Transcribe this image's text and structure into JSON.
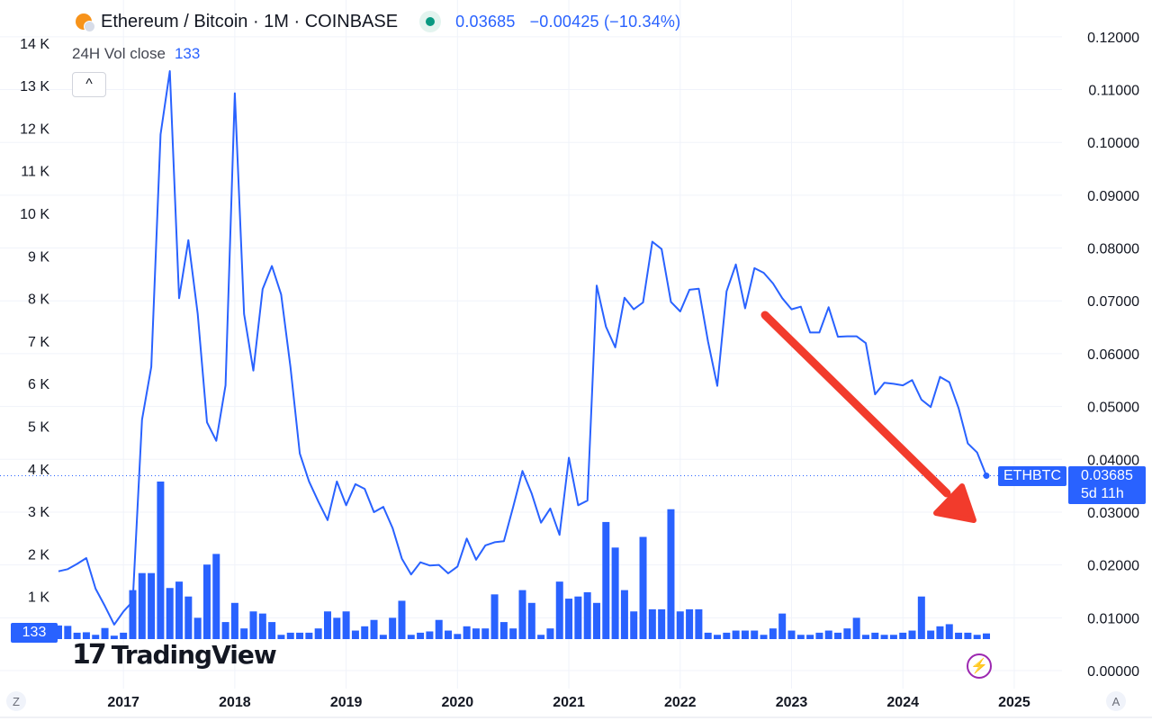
{
  "header": {
    "title": "Ethereum / Bitcoin · 1M · COINBASE",
    "last_price": "0.03685",
    "change": "−0.00425 (−10.34%)"
  },
  "volume_legend": {
    "label": "24H Vol close",
    "value": "133"
  },
  "collapse_glyph": "^",
  "price_tag": {
    "symbol": "ETHBTC",
    "price": "0.03685",
    "countdown": "5d 11h"
  },
  "volume_tag": "133",
  "branding": {
    "logo_mark": "17",
    "logo_text": "TradingView"
  },
  "bolt_glyph": "⚡",
  "corner_left": "Z",
  "corner_right": "A",
  "colors": {
    "line": "#2962ff",
    "volume": "#2962ff",
    "arrow": "#f23b2c",
    "grid": "#f0f3fa",
    "axis_text": "#131722"
  },
  "chart_data": [
    {
      "type": "line",
      "title": "Ethereum / Bitcoin · 1M · COINBASE",
      "series": [],
      "grid": true,
      "y_axis_side": "right",
      "ylim": [
        0,
        0.122
      ],
      "yticks": [
        "0.12000",
        "0.11000",
        "0.10000",
        "0.09000",
        "0.08000",
        "0.07000",
        "0.06000",
        "0.05000",
        "0.04000",
        "0.03000",
        "0.02000",
        "0.01000",
        "0.00000"
      ],
      "xticks": [
        "2017",
        "2018",
        "2019",
        "2020",
        "2021",
        "2022",
        "2023",
        "2024",
        "2025"
      ],
      "x": [
        "2016-06",
        "2016-07",
        "2016-08",
        "2016-09",
        "2016-10",
        "2016-11",
        "2016-12",
        "2017-01",
        "2017-02",
        "2017-03",
        "2017-04",
        "2017-05",
        "2017-06",
        "2017-07",
        "2017-08",
        "2017-09",
        "2017-10",
        "2017-11",
        "2017-12",
        "2018-01",
        "2018-02",
        "2018-03",
        "2018-04",
        "2018-05",
        "2018-06",
        "2018-07",
        "2018-08",
        "2018-09",
        "2018-10",
        "2018-11",
        "2018-12",
        "2019-01",
        "2019-02",
        "2019-03",
        "2019-04",
        "2019-05",
        "2019-06",
        "2019-07",
        "2019-08",
        "2019-09",
        "2019-10",
        "2019-11",
        "2019-12",
        "2020-01",
        "2020-02",
        "2020-03",
        "2020-04",
        "2020-05",
        "2020-06",
        "2020-07",
        "2020-08",
        "2020-09",
        "2020-10",
        "2020-11",
        "2020-12",
        "2021-01",
        "2021-02",
        "2021-03",
        "2021-04",
        "2021-05",
        "2021-06",
        "2021-07",
        "2021-08",
        "2021-09",
        "2021-10",
        "2021-11",
        "2021-12",
        "2022-01",
        "2022-02",
        "2022-03",
        "2022-04",
        "2022-05",
        "2022-06",
        "2022-07",
        "2022-08",
        "2022-09",
        "2022-10",
        "2022-11",
        "2022-12",
        "2023-01",
        "2023-02",
        "2023-03",
        "2023-04",
        "2023-05",
        "2023-06",
        "2023-07",
        "2023-08",
        "2023-09",
        "2023-10",
        "2023-11",
        "2023-12",
        "2024-01",
        "2024-02",
        "2024-03",
        "2024-04",
        "2024-05",
        "2024-06",
        "2024-07",
        "2024-08",
        "2024-09",
        "2024-10"
      ],
      "values": [
        0.0188,
        0.0192,
        0.0202,
        0.0213,
        0.0155,
        0.0122,
        0.0087,
        0.0112,
        0.0131,
        0.0475,
        0.0575,
        0.1015,
        0.1135,
        0.0705,
        0.0815,
        0.0675,
        0.047,
        0.0435,
        0.054,
        0.1093,
        0.0675,
        0.0568,
        0.0722,
        0.0766,
        0.0712,
        0.0574,
        0.0411,
        0.0358,
        0.032,
        0.0285,
        0.0358,
        0.0313,
        0.0353,
        0.0344,
        0.03,
        0.031,
        0.027,
        0.0212,
        0.0182,
        0.0205,
        0.0199,
        0.02,
        0.0184,
        0.0197,
        0.025,
        0.021,
        0.0237,
        0.0243,
        0.0245,
        0.031,
        0.0378,
        0.0335,
        0.028,
        0.0307,
        0.0257,
        0.0403,
        0.0313,
        0.0322,
        0.0729,
        0.0651,
        0.0612,
        0.0706,
        0.0684,
        0.0697,
        0.0812,
        0.0798,
        0.0698,
        0.068,
        0.0721,
        0.0723,
        0.0623,
        0.0539,
        0.0718,
        0.0769,
        0.0686,
        0.0762,
        0.0753,
        0.0733,
        0.0705,
        0.0684,
        0.0689,
        0.064,
        0.064,
        0.0688,
        0.0632,
        0.0633,
        0.0633,
        0.062,
        0.0523,
        0.0545,
        0.0543,
        0.054,
        0.055,
        0.0513,
        0.0499,
        0.0556,
        0.0546,
        0.0497,
        0.043,
        0.0413,
        0.0369
      ]
    },
    {
      "type": "bar",
      "title": "24H Vol close",
      "series": [],
      "ylim": [
        0,
        14000
      ],
      "yticks": [
        "14 K",
        "13 K",
        "12 K",
        "11 K",
        "10 K",
        "9 K",
        "8 K",
        "7 K",
        "6 K",
        "5 K",
        "4 K",
        "3 K",
        "2 K",
        "1 K"
      ],
      "values": [
        320,
        310,
        150,
        160,
        100,
        260,
        80,
        150,
        1150,
        1550,
        1550,
        3700,
        1200,
        1350,
        1000,
        500,
        1750,
        2000,
        400,
        850,
        250,
        650,
        600,
        400,
        100,
        150,
        150,
        150,
        250,
        650,
        500,
        650,
        200,
        300,
        450,
        100,
        500,
        900,
        100,
        150,
        180,
        450,
        200,
        120,
        300,
        250,
        250,
        1050,
        400,
        250,
        1150,
        850,
        100,
        250,
        1350,
        950,
        1000,
        1100,
        850,
        2750,
        2150,
        1150,
        650,
        2400,
        700,
        700,
        3050,
        650,
        700,
        700,
        150,
        100,
        150,
        200,
        200,
        200,
        100,
        250,
        600,
        200,
        100,
        100,
        150,
        200,
        150,
        250,
        500,
        100,
        150,
        100,
        100,
        150,
        200,
        1000,
        200,
        300,
        350,
        150,
        150,
        100,
        133
      ]
    }
  ]
}
